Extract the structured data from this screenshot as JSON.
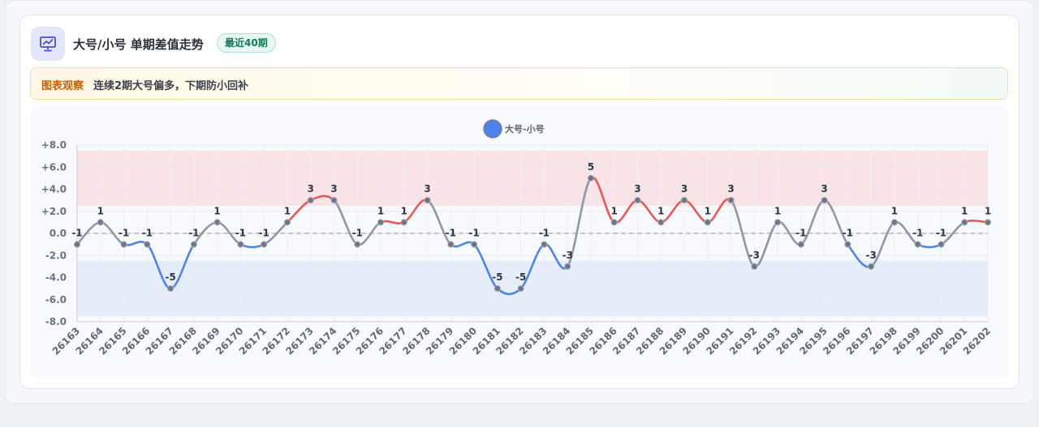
{
  "header": {
    "title": "大号/小号 单期差值走势",
    "badge": "最近40期",
    "icon": "chart-presentation-icon"
  },
  "note": {
    "label": "图表观察",
    "text": "连续2期大号偏多，下期防小回补"
  },
  "colors": {
    "positive": "#e05a5a",
    "negative": "#4f86e0",
    "neutral": "#8e97a6",
    "point": "#6d7687",
    "legend": "#4a82ea",
    "upper_band": "#f9e3e6",
    "lower_band": "#e5ecfa"
  },
  "chart_data": {
    "type": "line",
    "title": "",
    "xlabel": "",
    "ylabel": "",
    "ylim": [
      -8,
      8
    ],
    "yticks": [
      "+8.0",
      "+6.0",
      "+4.0",
      "+2.0",
      "0.0",
      "-2.0",
      "-4.0",
      "-6.0",
      "-8.0"
    ],
    "ytick_values": [
      8,
      6,
      4,
      2,
      0,
      -2,
      -4,
      -6,
      -8
    ],
    "upper_band": [
      2.5,
      7.5
    ],
    "lower_band": [
      -7.5,
      -2.5
    ],
    "legend_position": "top-center",
    "grid": true,
    "categories": [
      "26163",
      "26164",
      "26165",
      "26166",
      "26167",
      "26168",
      "26169",
      "26170",
      "26171",
      "26172",
      "26173",
      "26174",
      "26175",
      "26176",
      "26177",
      "26178",
      "26179",
      "26180",
      "26181",
      "26182",
      "26183",
      "26184",
      "26185",
      "26186",
      "26187",
      "26188",
      "26189",
      "26190",
      "26191",
      "26192",
      "26193",
      "26194",
      "26195",
      "26196",
      "26197",
      "26198",
      "26199",
      "26200",
      "26201",
      "26202"
    ],
    "series": [
      {
        "name": "大号-小号",
        "values": [
          -1,
          1,
          -1,
          -1,
          -5,
          -1,
          1,
          -1,
          -1,
          1,
          3,
          3,
          -1,
          1,
          1,
          3,
          -1,
          -1,
          -5,
          -5,
          -1,
          -3,
          5,
          1,
          3,
          1,
          3,
          1,
          3,
          -3,
          1,
          -1,
          3,
          -1,
          -3,
          1,
          -1,
          -1,
          1,
          1
        ],
        "labels": [
          "-1",
          "1",
          "-1",
          "-1",
          "-5",
          "-1",
          "1",
          "-1",
          "-1",
          "1",
          "3",
          "3",
          "-1",
          "1",
          "1",
          "3",
          "-1",
          "-1",
          "-5",
          "-5",
          "-1",
          "-3",
          "5",
          "1",
          "3",
          "1",
          "3",
          "1",
          "3",
          "-3",
          "1",
          "-1",
          "3",
          "-1",
          "-3",
          "1",
          "-1",
          "-1",
          "1",
          "1"
        ]
      }
    ]
  }
}
